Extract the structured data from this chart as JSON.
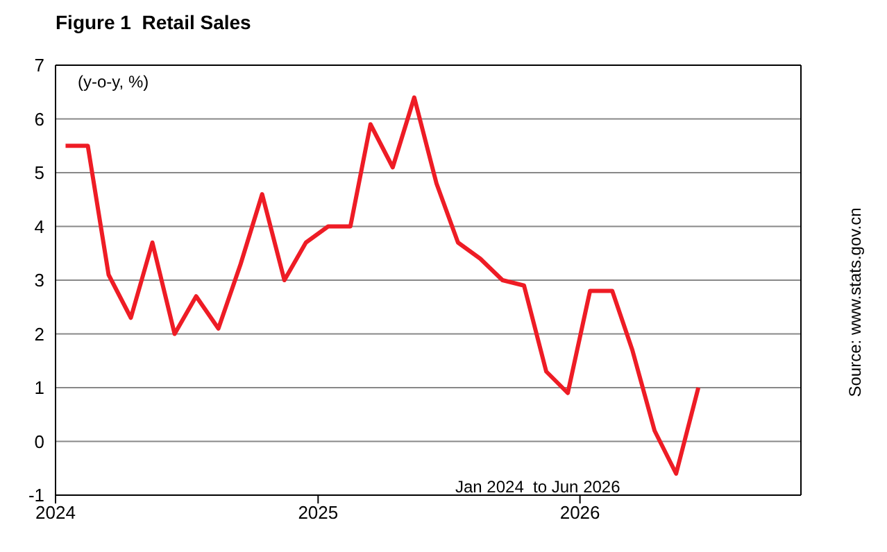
{
  "chart_data": {
    "type": "line",
    "title": "Figure 1  Retail Sales",
    "annotations": [
      "(y-o-y, %)",
      "Jan 2024  to Jun 2026",
      "Source: www.stats.gov.cn"
    ],
    "x": [
      "2024-01-15",
      "2024-02-15",
      "2024-03-15",
      "2024-04-15",
      "2024-05-15",
      "2024-06-15",
      "2024-07-15",
      "2024-08-15",
      "2024-09-15",
      "2024-10-15",
      "2024-11-15",
      "2024-12-15",
      "2025-01-15",
      "2025-02-15",
      "2025-03-15",
      "2025-04-15",
      "2025-05-15",
      "2025-06-15",
      "2025-07-15",
      "2025-08-15",
      "2025-09-15",
      "2025-10-15",
      "2025-11-15",
      "2025-12-15",
      "2026-01-15",
      "2026-02-15",
      "2026-03-15",
      "2026-04-15",
      "2026-05-15",
      "2026-06-15"
    ],
    "series": [
      {
        "color": "#ee1c25",
        "values": [
          5.5,
          5.5,
          3.1,
          2.3,
          3.7,
          2.0,
          2.7,
          2.1,
          3.3,
          4.6,
          3.0,
          3.7,
          4.0,
          4.0,
          5.9,
          5.1,
          6.4,
          4.8,
          3.7,
          3.4,
          3.0,
          2.9,
          1.3,
          0.9,
          2.8,
          2.8,
          1.7,
          0.2,
          -0.6,
          1.0
        ]
      }
    ],
    "xlim": [
      "2024-01-01",
      "2026-11-05"
    ],
    "xticks": [
      {
        "value": "2024-01-01",
        "label": "2024"
      },
      {
        "value": "2025-01-01",
        "label": "2025"
      },
      {
        "value": "2026-01-01",
        "label": "2026"
      }
    ],
    "ylim": [
      -1,
      7
    ],
    "yticks": [
      -1,
      0,
      1,
      2,
      3,
      4,
      5,
      6,
      7
    ],
    "grid": "y",
    "legend": false,
    "marker": "none",
    "line_style": "solid"
  }
}
